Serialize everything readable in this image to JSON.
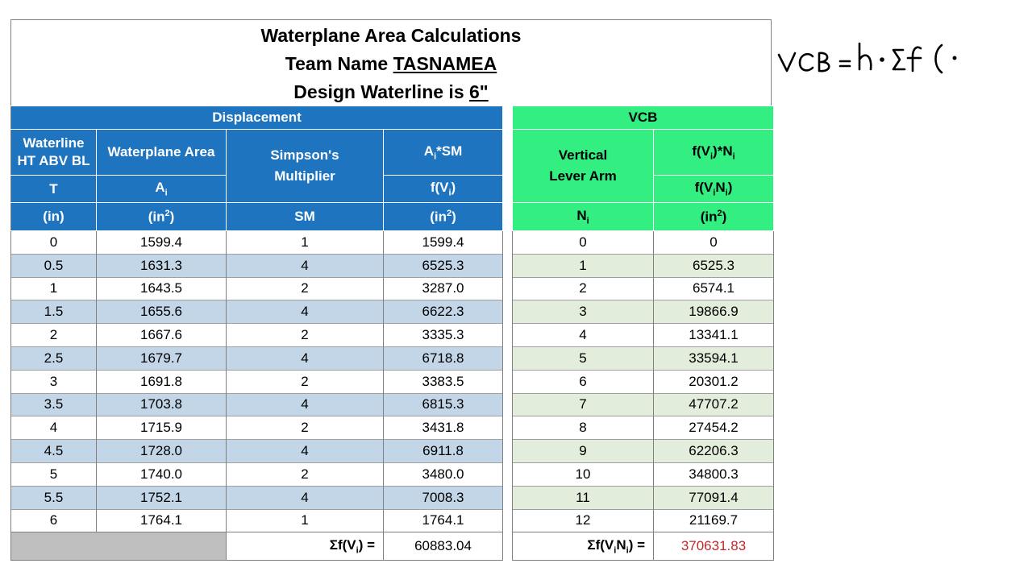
{
  "title": {
    "line1": "Waterplane Area Calculations",
    "team_prefix": "Team Name ",
    "team_name": "TASNAMEA",
    "waterline_prefix": "Design Waterline is ",
    "waterline_value": "6\""
  },
  "displacement": {
    "section_label": "Displacement",
    "col1": {
      "name": "Waterline HT ABV BL",
      "name_l1": "Waterline",
      "name_l2": "HT ABV BL",
      "symbol": "T",
      "unit": "(in)"
    },
    "col2": {
      "name": "Waterplane Area",
      "symbol_base": "A",
      "symbol_sub": "i",
      "unit_base": "(in",
      "unit_sup": "2",
      "unit_end": ")"
    },
    "col3": {
      "name_l1": "Simpson's",
      "name_l2": "Multiplier",
      "unit": "SM"
    },
    "col4": {
      "name_base": "A",
      "name_sub": "i",
      "name_end": "*SM",
      "symbol_base": "f(V",
      "symbol_sub": "i",
      "symbol_end": ")",
      "unit_base": "(in",
      "unit_sup": "2",
      "unit_end": ")"
    },
    "rows": [
      [
        "0",
        "1599.4",
        "1",
        "1599.4"
      ],
      [
        "0.5",
        "1631.3",
        "4",
        "6525.3"
      ],
      [
        "1",
        "1643.5",
        "2",
        "3287.0"
      ],
      [
        "1.5",
        "1655.6",
        "4",
        "6622.3"
      ],
      [
        "2",
        "1667.6",
        "2",
        "3335.3"
      ],
      [
        "2.5",
        "1679.7",
        "4",
        "6718.8"
      ],
      [
        "3",
        "1691.8",
        "2",
        "3383.5"
      ],
      [
        "3.5",
        "1703.8",
        "4",
        "6815.3"
      ],
      [
        "4",
        "1715.9",
        "2",
        "3431.8"
      ],
      [
        "4.5",
        "1728.0",
        "4",
        "6911.8"
      ],
      [
        "5",
        "1740.0",
        "2",
        "3480.0"
      ],
      [
        "5.5",
        "1752.1",
        "4",
        "7008.3"
      ],
      [
        "6",
        "1764.1",
        "1",
        "1764.1"
      ]
    ],
    "sum_label": {
      "base": "Σf(V",
      "sub": "i",
      "end": ") ="
    },
    "sum_value": "60883.04"
  },
  "vcb": {
    "section_label": "VCB",
    "col1": {
      "name_l1": "Vertical",
      "name_l2": "Lever Arm",
      "symbol_base": "N",
      "symbol_sub": "i"
    },
    "col2": {
      "name_a": "f(V",
      "name_sub1": "i",
      "name_b": ")*N",
      "name_sub2": "i",
      "symbol_a": "f(V",
      "symbol_sub1": "i",
      "symbol_b": "N",
      "symbol_sub2": "i",
      "symbol_end": ")",
      "unit_base": "(in",
      "unit_sup": "2",
      "unit_end": ")"
    },
    "rows": [
      [
        "0",
        "0"
      ],
      [
        "1",
        "6525.3"
      ],
      [
        "2",
        "6574.1"
      ],
      [
        "3",
        "19866.9"
      ],
      [
        "4",
        "13341.1"
      ],
      [
        "5",
        "33594.1"
      ],
      [
        "6",
        "20301.2"
      ],
      [
        "7",
        "47707.2"
      ],
      [
        "8",
        "27454.2"
      ],
      [
        "9",
        "62206.3"
      ],
      [
        "10",
        "34800.3"
      ],
      [
        "11",
        "77091.4"
      ],
      [
        "12",
        "21169.7"
      ]
    ],
    "sum_label": {
      "a": "Σf(V",
      "sub1": "i",
      "b": "N",
      "sub2": "i",
      "end": ") ="
    },
    "sum_value": "370631.83"
  },
  "handwriting": {
    "text": "VCB = h · Σ f("
  },
  "colors": {
    "header_blue": "#1f74bf",
    "header_green": "#33ee81",
    "row_blue": "#c3d6e8",
    "row_green": "#e2eedb",
    "sum_red": "#c0282d"
  }
}
